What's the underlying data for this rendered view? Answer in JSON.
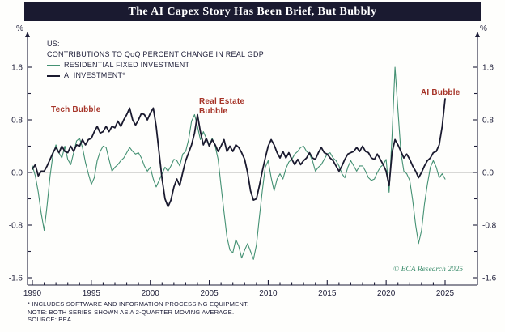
{
  "header": {
    "title": "The AI Capex Story Has Been Brief, But Bubbly"
  },
  "legend": {
    "region": "US:",
    "heading": "CONTRIBUTIONS TO QoQ PERCENT CHANGE IN REAL GDP",
    "series_residential": "RESIDENTIAL FIXED INVESTMENT",
    "series_ai": "AI INVESTMENT*"
  },
  "annotations": {
    "tech": "Tech Bubble",
    "real_estate": "Real Estate\nBubble",
    "ai": "AI Bubble"
  },
  "copyright": "© BCA Research 2025",
  "footnotes": [
    "* INCLUDES SOFTWARE AND INFORMATION PROCESSING EQUIPMENT.",
    "NOTE: BOTH SERIES SHOWN AS A 2-QUARTER MOVING AVERAGE.",
    "SOURCE: BEA."
  ],
  "axes": {
    "y_unit_left": "%",
    "y_unit_right": "%",
    "y_ticks": [
      1.6,
      0.8,
      0.0,
      -0.8,
      -1.6
    ],
    "x_ticks": [
      1990,
      1995,
      2000,
      2005,
      2010,
      2015,
      2020,
      2025
    ]
  },
  "colors": {
    "text": "#1d1d38",
    "title_bar_bg": "#1a1a30",
    "residential_green": "#449173",
    "ai_dark": "#1a1a2f",
    "annotation_red": "#a63428",
    "copyright_green": "#3e8e6e",
    "zero_line_gray": "#999999"
  },
  "chart_data": {
    "type": "line",
    "title": "The AI Capex Story Has Been Brief, But Bubbly",
    "subtitle": "US: Contributions to QoQ percent change in real GDP",
    "xlabel": "",
    "ylabel": "%",
    "x_range": [
      1990,
      2025.25
    ],
    "ylim": [
      -1.6,
      1.6
    ],
    "grid": "zero-line only",
    "legend_position": "top-left inside",
    "x_start": 1990,
    "x_step": 0.25,
    "series": [
      {
        "name": "RESIDENTIAL FIXED INVESTMENT",
        "id": "residential-fixed-investment",
        "color": "#449173",
        "stroke_width": 1.1,
        "values": [
          0.1,
          -0.05,
          -0.3,
          -0.62,
          -0.88,
          -0.5,
          -0.05,
          0.28,
          0.42,
          0.3,
          0.22,
          0.4,
          0.2,
          0.12,
          0.3,
          0.48,
          0.52,
          0.38,
          0.15,
          -0.02,
          -0.18,
          -0.08,
          0.18,
          0.32,
          0.4,
          0.38,
          0.2,
          0.02,
          0.08,
          0.12,
          0.18,
          0.22,
          0.3,
          0.38,
          0.32,
          0.28,
          0.3,
          0.22,
          0.1,
          0.02,
          0.08,
          -0.1,
          -0.22,
          -0.12,
          -0.02,
          0.08,
          0.02,
          0.1,
          0.2,
          0.18,
          0.1,
          0.28,
          0.32,
          0.5,
          0.78,
          0.88,
          0.7,
          0.5,
          0.62,
          0.52,
          0.42,
          0.52,
          0.4,
          0.2,
          -0.2,
          -0.6,
          -0.98,
          -1.18,
          -1.22,
          -1.02,
          -1.12,
          -1.3,
          -1.18,
          -1.08,
          -1.2,
          -1.32,
          -1.1,
          -0.68,
          -0.28,
          0.08,
          0.18,
          -0.08,
          -0.28,
          -0.1,
          -0.02,
          -0.1,
          0.06,
          0.16,
          0.2,
          0.28,
          0.32,
          0.38,
          0.4,
          0.32,
          0.28,
          0.18,
          0.02,
          0.08,
          0.12,
          0.2,
          0.28,
          0.3,
          0.22,
          0.18,
          0.1,
          -0.02,
          -0.08,
          0.08,
          0.18,
          0.1,
          0.02,
          0.1,
          0.1,
          0.02,
          -0.08,
          -0.12,
          -0.1,
          0.0,
          0.08,
          0.12,
          0.2,
          -0.3,
          0.55,
          1.6,
          0.95,
          0.3,
          0.02,
          -0.02,
          -0.12,
          -0.42,
          -0.8,
          -1.08,
          -0.88,
          -0.48,
          -0.18,
          0.08,
          0.18,
          0.08,
          -0.08,
          -0.02,
          -0.1
        ]
      },
      {
        "name": "AI INVESTMENT*",
        "id": "ai-investment",
        "color": "#1a1a2f",
        "stroke_width": 1.8,
        "values": [
          0.05,
          0.12,
          -0.05,
          0.02,
          0.02,
          0.1,
          0.2,
          0.3,
          0.38,
          0.3,
          0.4,
          0.32,
          0.3,
          0.4,
          0.32,
          0.42,
          0.4,
          0.5,
          0.42,
          0.5,
          0.52,
          0.62,
          0.7,
          0.6,
          0.62,
          0.7,
          0.62,
          0.7,
          0.68,
          0.78,
          0.7,
          0.8,
          0.88,
          0.98,
          0.8,
          0.72,
          0.8,
          0.9,
          0.88,
          0.8,
          0.9,
          0.98,
          0.7,
          0.3,
          -0.1,
          -0.4,
          -0.52,
          -0.42,
          -0.22,
          -0.1,
          -0.2,
          0.0,
          0.18,
          0.3,
          0.42,
          0.6,
          0.88,
          0.62,
          0.42,
          0.52,
          0.4,
          0.5,
          0.42,
          0.32,
          0.4,
          0.5,
          0.32,
          0.4,
          0.32,
          0.42,
          0.38,
          0.3,
          0.2,
          0.0,
          -0.28,
          -0.42,
          -0.4,
          -0.2,
          0.02,
          0.22,
          0.4,
          0.5,
          0.42,
          0.3,
          0.22,
          0.32,
          0.22,
          0.3,
          0.2,
          0.12,
          0.2,
          0.12,
          0.18,
          0.22,
          0.3,
          0.22,
          0.2,
          0.3,
          0.38,
          0.3,
          0.28,
          0.22,
          0.18,
          0.1,
          0.02,
          0.1,
          0.2,
          0.28,
          0.3,
          0.32,
          0.38,
          0.32,
          0.4,
          0.32,
          0.3,
          0.22,
          0.2,
          0.28,
          0.2,
          0.12,
          0.02,
          -0.2,
          0.3,
          0.5,
          0.42,
          0.32,
          0.22,
          0.28,
          0.2,
          0.1,
          0.02,
          -0.08,
          0.0,
          0.1,
          0.18,
          0.22,
          0.3,
          0.32,
          0.42,
          0.7,
          1.12
        ]
      }
    ]
  }
}
